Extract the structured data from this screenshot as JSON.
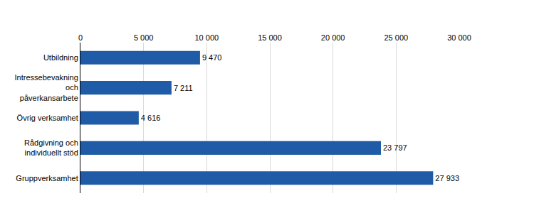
{
  "chart_data": {
    "type": "bar",
    "orientation": "horizontal",
    "categories": [
      "Utbildning",
      "Intressebevakning och påverkansarbete",
      "Övrig verksamhet",
      "Rådgivning och individuellt stöd",
      "Gruppverksamhet"
    ],
    "values": [
      9470,
      7211,
      4616,
      23797,
      27933
    ],
    "value_labels": [
      "9 470",
      "7 211",
      "4 616",
      "23 797",
      "27 933"
    ],
    "color": "#1f5ba6",
    "xlim": [
      0,
      30000
    ],
    "xticks": [
      0,
      {
        "value": 5000,
        "label": "5 000"
      },
      {
        "value": 10000,
        "label": "10 000"
      },
      {
        "value": 15000,
        "label": "15 000"
      },
      {
        "value": 20000,
        "label": "20 000"
      },
      {
        "value": 25000,
        "label": "25 000"
      },
      {
        "value": 30000,
        "label": "30 000"
      }
    ],
    "grid": true,
    "data_labels": true
  }
}
